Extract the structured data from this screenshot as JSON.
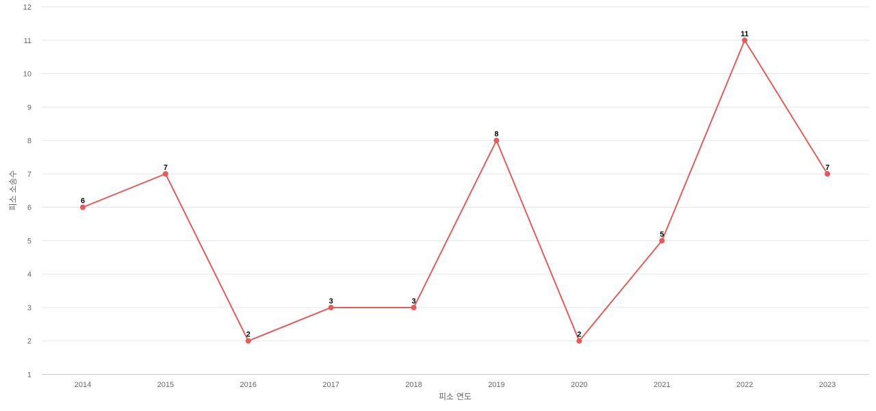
{
  "chart_data": {
    "type": "line",
    "title": "",
    "xlabel": "피소 연도",
    "ylabel": "피소 소송수",
    "categories": [
      "2014",
      "2015",
      "2016",
      "2017",
      "2018",
      "2019",
      "2020",
      "2021",
      "2022",
      "2023"
    ],
    "series": [
      {
        "values": [
          6,
          7,
          2,
          3,
          3,
          8,
          2,
          5,
          11,
          7
        ]
      }
    ],
    "ylim": [
      1,
      12
    ],
    "yticks": [
      1,
      2,
      3,
      4,
      5,
      6,
      7,
      8,
      9,
      10,
      11,
      12
    ],
    "grid": true,
    "legend": "none",
    "data_labels": true,
    "colors": {
      "line": "#e85a5a",
      "grid": "#e6e6e6",
      "tick_text": "#666666",
      "label_text": "#000000"
    }
  }
}
